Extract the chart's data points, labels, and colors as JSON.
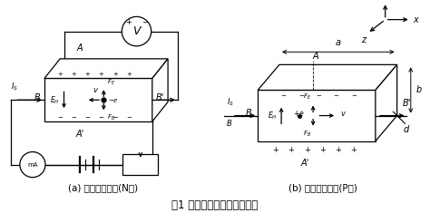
{
  "title": "图1 霍尔效应实验原理示意图",
  "sub_a": "(a) 载流子为电子(N型)",
  "sub_b": "(b) 载流子为空穴(P型)",
  "bg_color": "#ffffff",
  "line_color": "#000000",
  "font_size_label": 7,
  "font_size_title": 8.5,
  "font_size_sub": 7.5
}
